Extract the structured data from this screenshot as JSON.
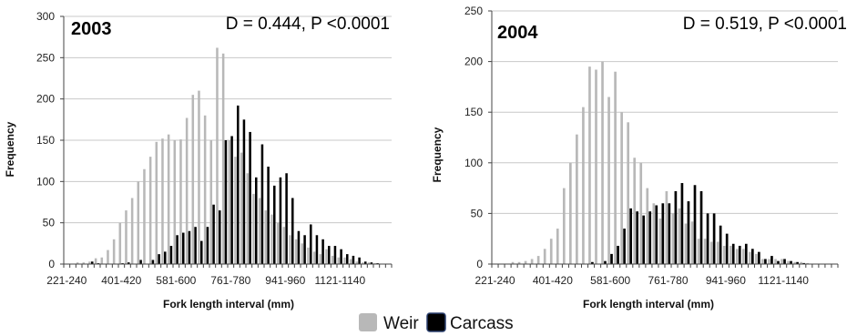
{
  "legend": {
    "items": [
      {
        "name": "Weir",
        "color": "#b8b8b8"
      },
      {
        "name": "Carcass",
        "color": "#000000"
      }
    ]
  },
  "chart_data": [
    {
      "type": "bar",
      "year_label": "2003",
      "stat": "D = 0.444, P <0.0001",
      "xlabel": "Fork length interval (mm)",
      "ylabel": "Frequency",
      "ylim": [
        0,
        300
      ],
      "yticks": [
        0,
        50,
        100,
        150,
        200,
        250,
        300
      ],
      "x_tick_labels": [
        "221-240",
        "401-420",
        "581-600",
        "761-780",
        "941-960",
        "1121-1140"
      ],
      "x_tick_every": 9,
      "grid": true,
      "categories_start": 221,
      "category_width": 20,
      "series": [
        {
          "name": "Weir",
          "values": [
            0,
            0,
            2,
            2,
            3,
            7,
            8,
            17,
            30,
            50,
            65,
            80,
            100,
            115,
            130,
            148,
            152,
            157,
            150,
            151,
            177,
            205,
            210,
            180,
            150,
            262,
            255,
            150,
            130,
            135,
            110,
            85,
            80,
            65,
            60,
            50,
            45,
            35,
            30,
            25,
            20,
            15,
            12,
            18,
            10,
            8,
            8,
            6,
            3,
            2,
            2,
            1,
            0,
            0
          ]
        },
        {
          "name": "Carcass",
          "values": [
            0,
            0,
            0,
            0,
            3,
            1,
            0,
            0,
            0,
            1,
            2,
            0,
            5,
            0,
            5,
            12,
            15,
            22,
            35,
            38,
            40,
            45,
            28,
            45,
            72,
            65,
            150,
            155,
            192,
            175,
            160,
            105,
            145,
            118,
            95,
            105,
            110,
            80,
            40,
            35,
            48,
            35,
            30,
            22,
            22,
            18,
            12,
            10,
            8,
            3,
            2,
            1,
            0,
            0
          ]
        }
      ]
    },
    {
      "type": "bar",
      "year_label": "2004",
      "stat": "D = 0.519, P <0.0001",
      "xlabel": "Fork length interval (mm)",
      "ylabel": "Frequency",
      "ylim": [
        0,
        250
      ],
      "yticks": [
        0,
        50,
        100,
        150,
        200,
        250
      ],
      "x_tick_labels": [
        "221-240",
        "401-420",
        "581-600",
        "761-780",
        "941-960",
        "1121-1140"
      ],
      "x_tick_every": 9,
      "grid": true,
      "categories_start": 221,
      "category_width": 20,
      "series": [
        {
          "name": "Weir",
          "values": [
            0,
            0,
            0,
            2,
            2,
            3,
            5,
            8,
            15,
            25,
            35,
            75,
            100,
            128,
            155,
            195,
            192,
            200,
            165,
            190,
            150,
            140,
            105,
            100,
            75,
            60,
            45,
            72,
            50,
            55,
            40,
            42,
            25,
            25,
            22,
            22,
            18,
            18,
            15,
            15,
            12,
            10,
            5,
            5,
            5,
            5,
            3,
            2,
            2,
            1,
            0,
            0,
            0,
            0
          ]
        },
        {
          "name": "Carcass",
          "values": [
            0,
            0,
            0,
            0,
            0,
            0,
            0,
            0,
            0,
            0,
            0,
            0,
            0,
            0,
            0,
            2,
            0,
            3,
            10,
            18,
            35,
            55,
            52,
            48,
            52,
            58,
            60,
            60,
            72,
            80,
            62,
            78,
            72,
            50,
            50,
            38,
            30,
            20,
            18,
            20,
            15,
            12,
            5,
            8,
            3,
            5,
            3,
            2,
            1,
            0,
            0,
            0,
            0,
            0
          ]
        }
      ]
    }
  ]
}
